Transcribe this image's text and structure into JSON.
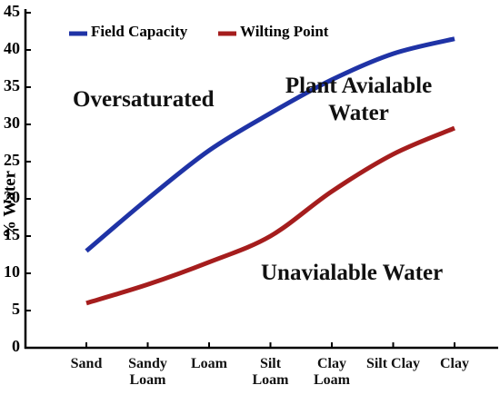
{
  "chart_data": {
    "type": "line",
    "y_label": "% Water",
    "categories": [
      "Sand",
      "Sandy Loam",
      "Loam",
      "Silt Loam",
      "Clay Loam",
      "Silt Clay",
      "Clay"
    ],
    "series": [
      {
        "name": "Field Capacity",
        "color": "#1f33a6",
        "values": [
          13,
          20,
          26.5,
          31.5,
          36,
          39.5,
          41.5
        ]
      },
      {
        "name": "Wilting Point",
        "color": "#a51d1d",
        "values": [
          6,
          8.5,
          11.5,
          15,
          21,
          26,
          29.5
        ]
      }
    ],
    "ylim": [
      0,
      45
    ],
    "yticks": [
      0,
      5,
      10,
      15,
      20,
      25,
      30,
      35,
      40,
      45
    ],
    "grid": false,
    "annotations": [
      "Oversaturated",
      "Plant Avialable Water",
      "Unavialable Water"
    ]
  }
}
